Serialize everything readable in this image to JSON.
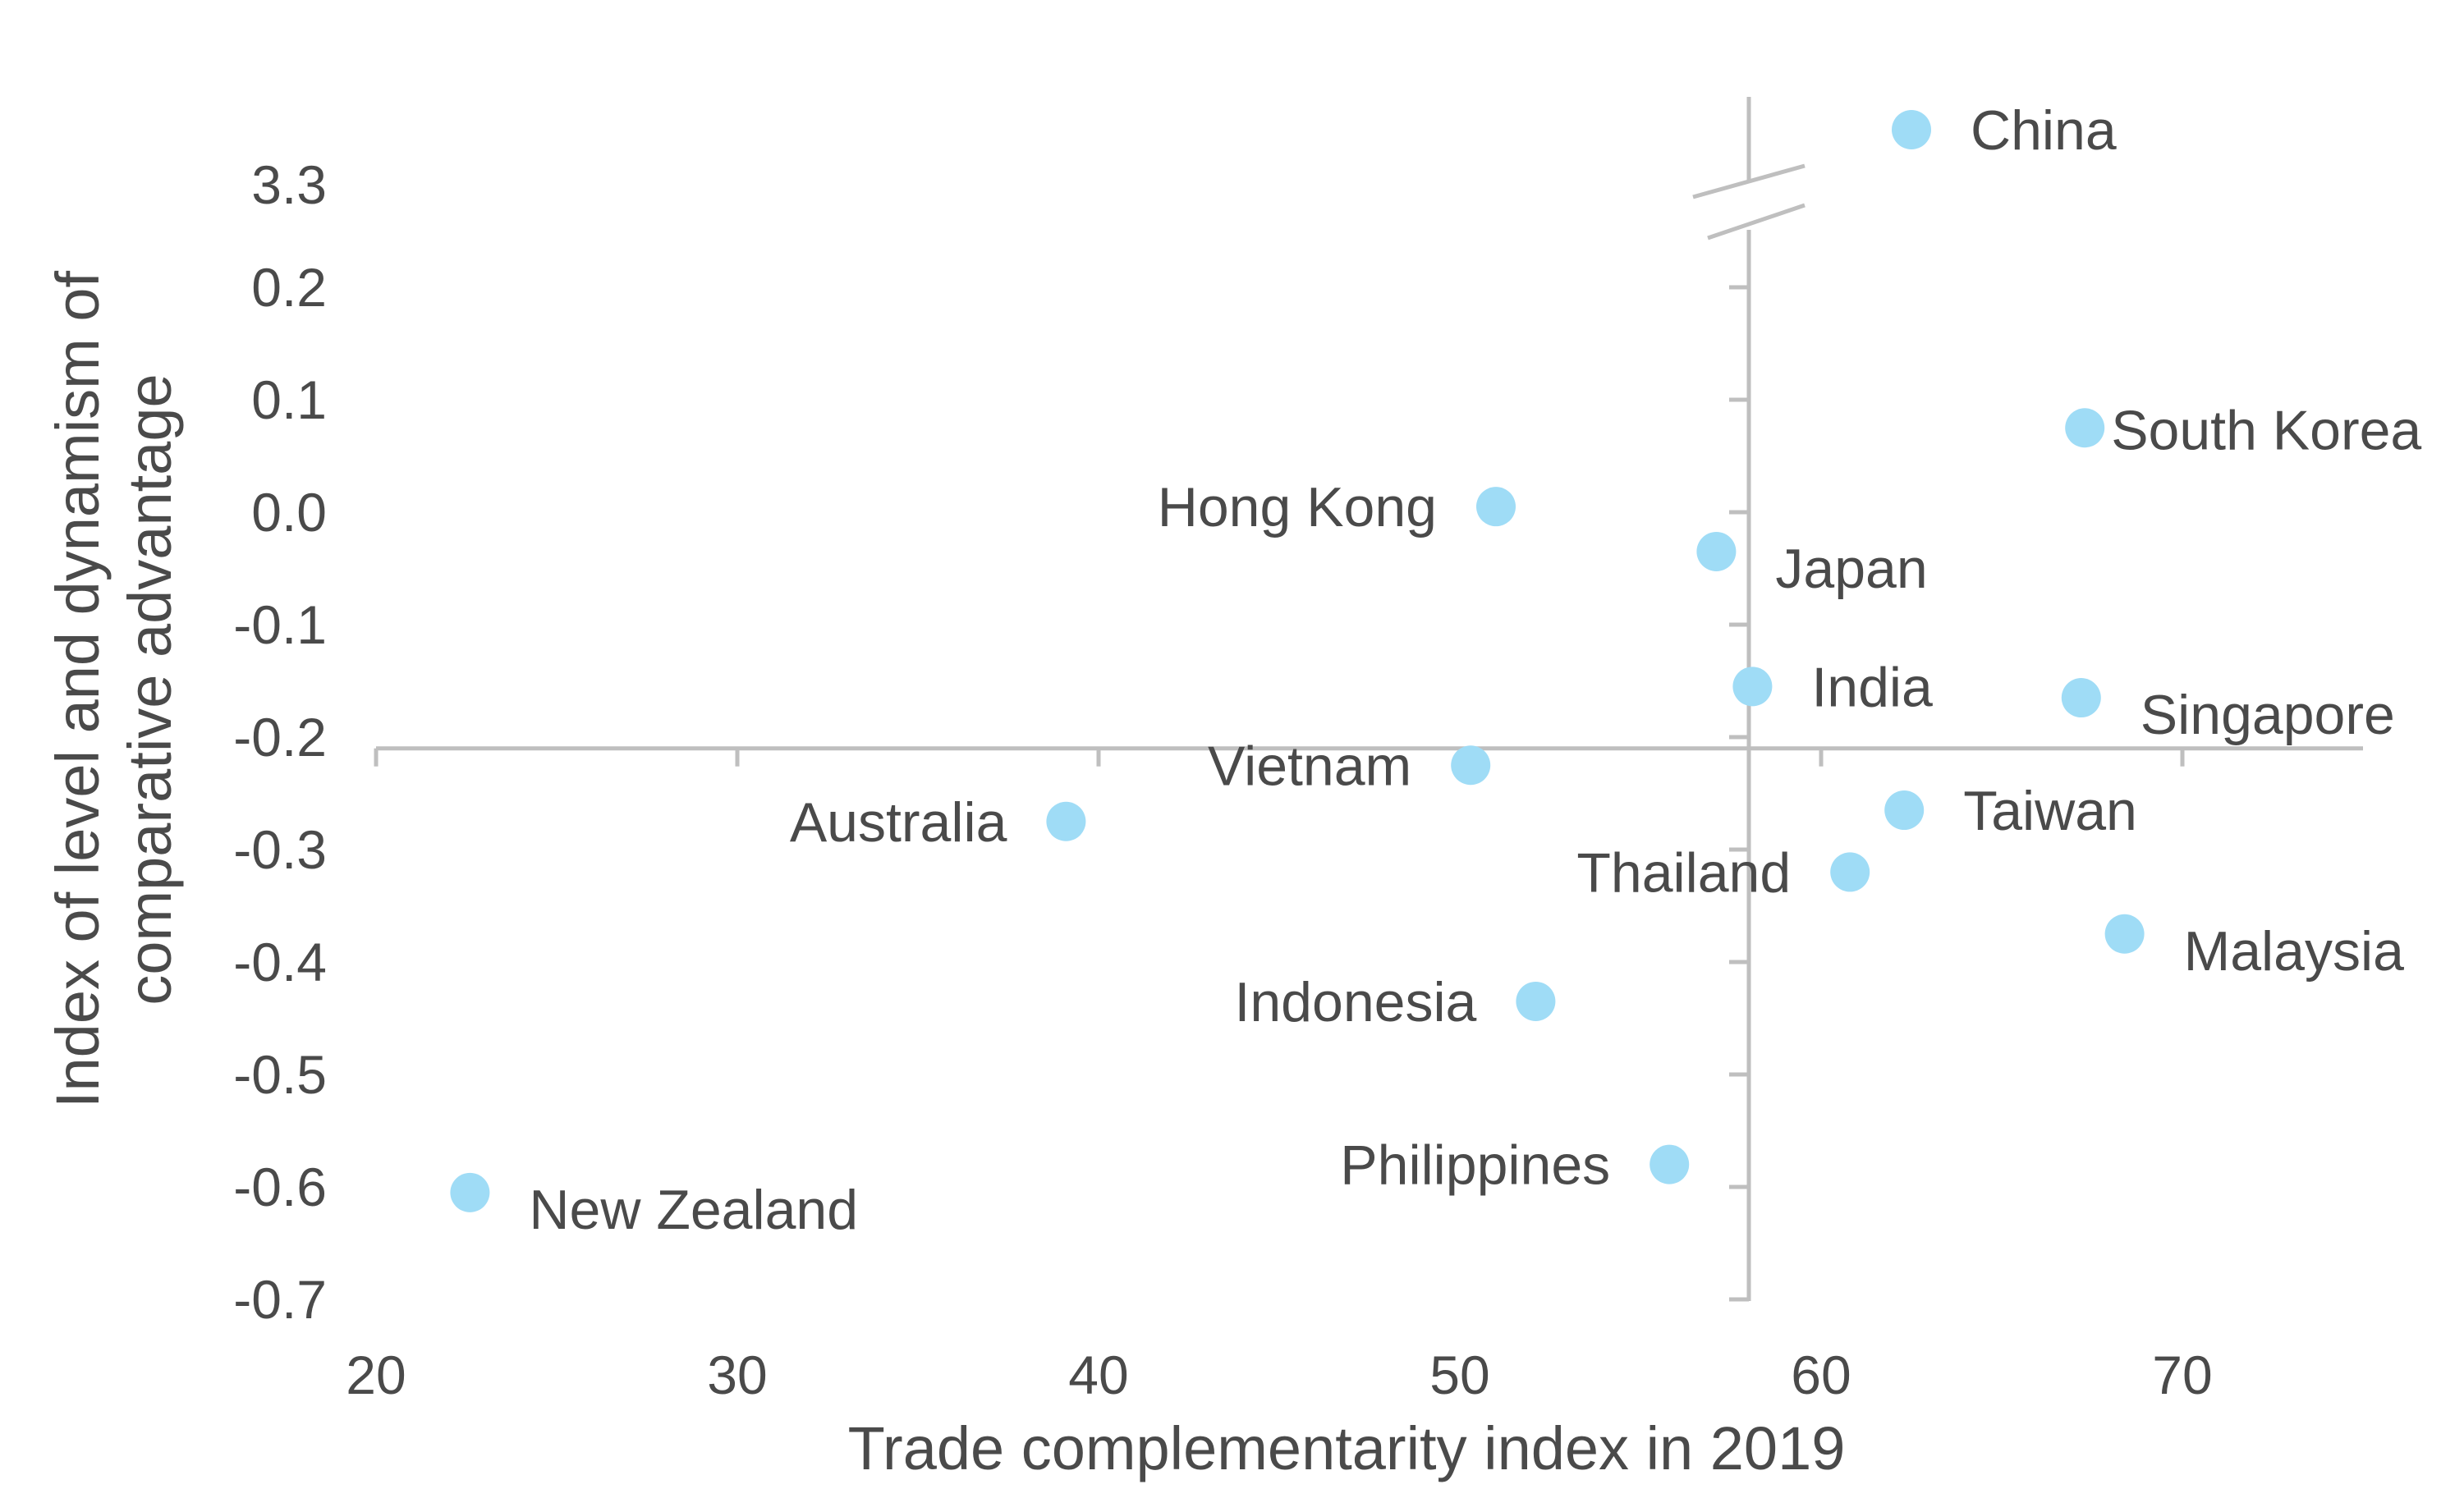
{
  "chart_data": {
    "type": "scatter",
    "title": "",
    "xlabel": "Trade complementarity index in 2019",
    "ylabel": "Index of level and dynamism of comparative advantage",
    "ylabel_lines": [
      "Index of level and dynamism of",
      "comparative advantage"
    ],
    "xlim": [
      20,
      75
    ],
    "ylim": [
      -0.7,
      0.25
    ],
    "x_ticks": [
      20,
      30,
      40,
      50,
      60,
      70
    ],
    "x_tick_labels": [
      "20",
      "30",
      "40",
      "50",
      "60",
      "70"
    ],
    "y_ticks": [
      0.2,
      0.1,
      0.0,
      -0.1,
      -0.2,
      -0.3,
      -0.4,
      -0.5,
      -0.6,
      -0.7
    ],
    "y_tick_labels": [
      "0.2",
      "0.1",
      "0.0",
      "-0.1",
      "-0.2",
      "-0.3",
      "-0.4",
      "-0.5",
      "-0.6",
      "-0.7"
    ],
    "y_break": {
      "above_label": "3.3",
      "above_value": 3.3
    },
    "axis_cross": {
      "x": 58,
      "y": -0.21
    },
    "grid": false,
    "legend": "none",
    "marker_color": "#9fdcf6",
    "axis_color": "#bfbfbf",
    "text_color": "#4a4a4a",
    "points": [
      {
        "label": "China",
        "x": 62.5,
        "y": 3.4,
        "above_break": true,
        "label_side": "right"
      },
      {
        "label": "South Korea",
        "x": 67.3,
        "y": 0.075,
        "label_side": "right"
      },
      {
        "label": "Hong Kong",
        "x": 51.0,
        "y": 0.005,
        "label_side": "left"
      },
      {
        "label": "Japan",
        "x": 57.1,
        "y": -0.035,
        "label_side": "right-below"
      },
      {
        "label": "India",
        "x": 58.1,
        "y": -0.155,
        "label_side": "right"
      },
      {
        "label": "Singapore",
        "x": 67.2,
        "y": -0.165,
        "label_side": "right-below"
      },
      {
        "label": "Vietnam",
        "x": 50.3,
        "y": -0.225,
        "label_side": "left"
      },
      {
        "label": "Australia",
        "x": 39.1,
        "y": -0.275,
        "label_side": "left"
      },
      {
        "label": "Taiwan",
        "x": 62.3,
        "y": -0.265,
        "label_side": "right"
      },
      {
        "label": "Thailand",
        "x": 60.8,
        "y": -0.32,
        "label_side": "left"
      },
      {
        "label": "Malaysia",
        "x": 68.4,
        "y": -0.375,
        "label_side": "right-below"
      },
      {
        "label": "Indonesia",
        "x": 52.1,
        "y": -0.435,
        "label_side": "left"
      },
      {
        "label": "Philippines",
        "x": 55.8,
        "y": -0.58,
        "label_side": "left"
      },
      {
        "label": "New Zealand",
        "x": 22.6,
        "y": -0.605,
        "label_side": "right-below"
      }
    ]
  }
}
